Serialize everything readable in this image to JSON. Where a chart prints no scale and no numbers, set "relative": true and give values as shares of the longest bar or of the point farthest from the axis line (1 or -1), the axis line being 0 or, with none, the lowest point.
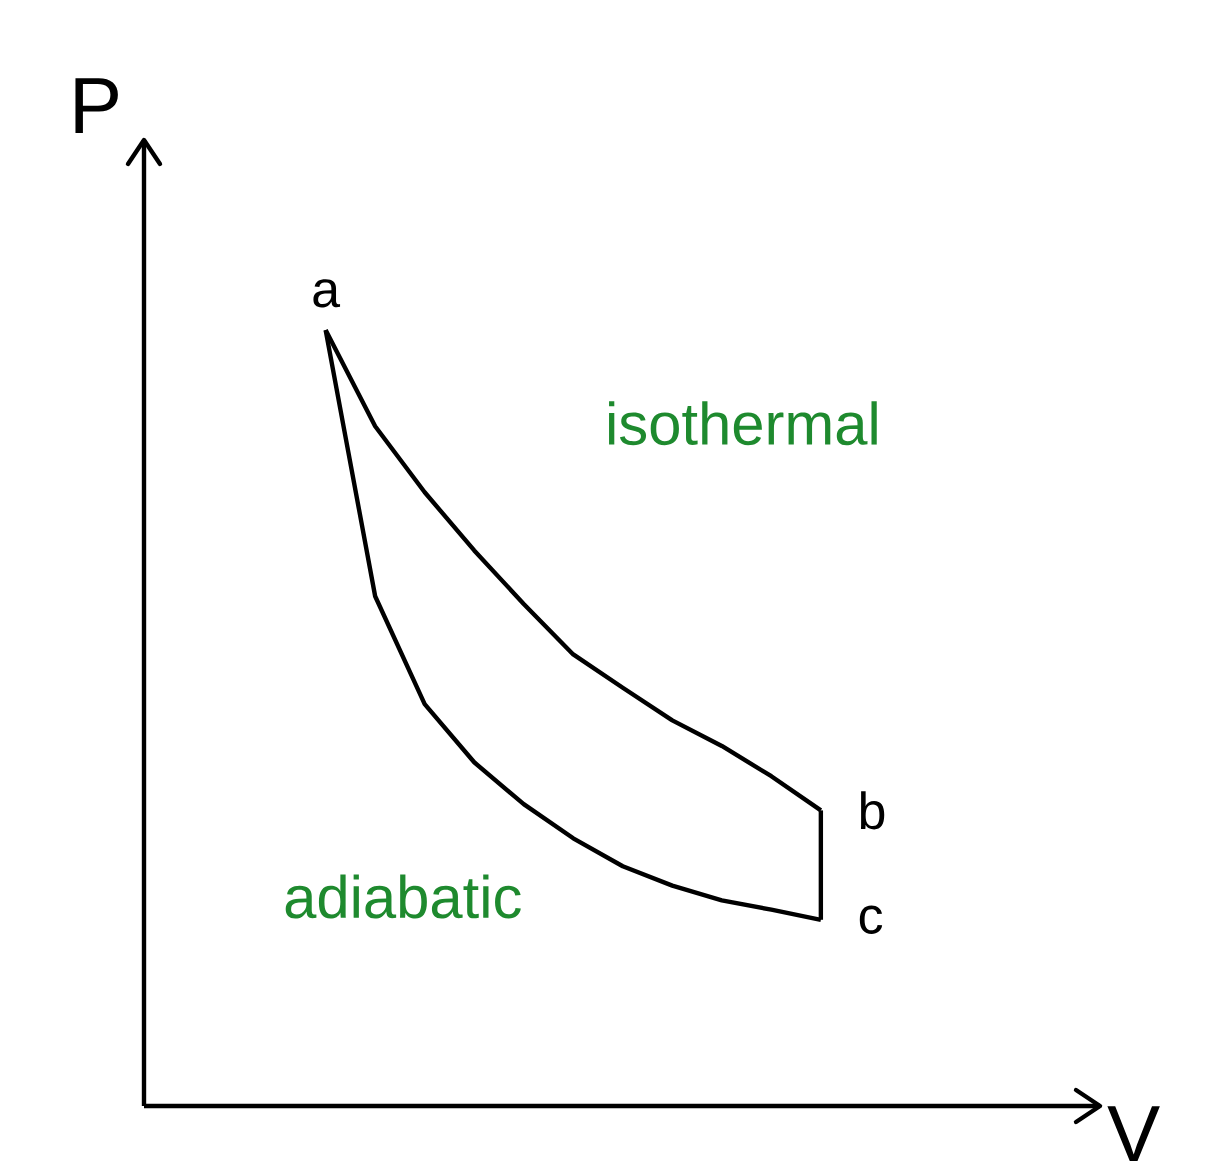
{
  "chart_data": {
    "type": "line",
    "relative": true,
    "xlabel": "V",
    "ylabel": "P",
    "marker": "none",
    "line_style": "solid",
    "annotations": [
      "a",
      "b",
      "c",
      "isothermal",
      "adiabatic"
    ],
    "categories": [
      null,
      null,
      null,
      null,
      null,
      null,
      null,
      null,
      null,
      null,
      null
    ],
    "series": [
      {
        "color": "#000000",
        "values": [
          1,
          0.876,
          0.791,
          0.716,
          0.647,
          0.582,
          0.539,
          0.497,
          0.464,
          0.425,
          0.381
        ]
      },
      {
        "color": "#000000",
        "values": [
          1,
          0.657,
          0.518,
          0.443,
          0.389,
          0.345,
          0.309,
          0.284,
          0.265,
          0.253,
          0.24
        ]
      }
    ]
  }
}
